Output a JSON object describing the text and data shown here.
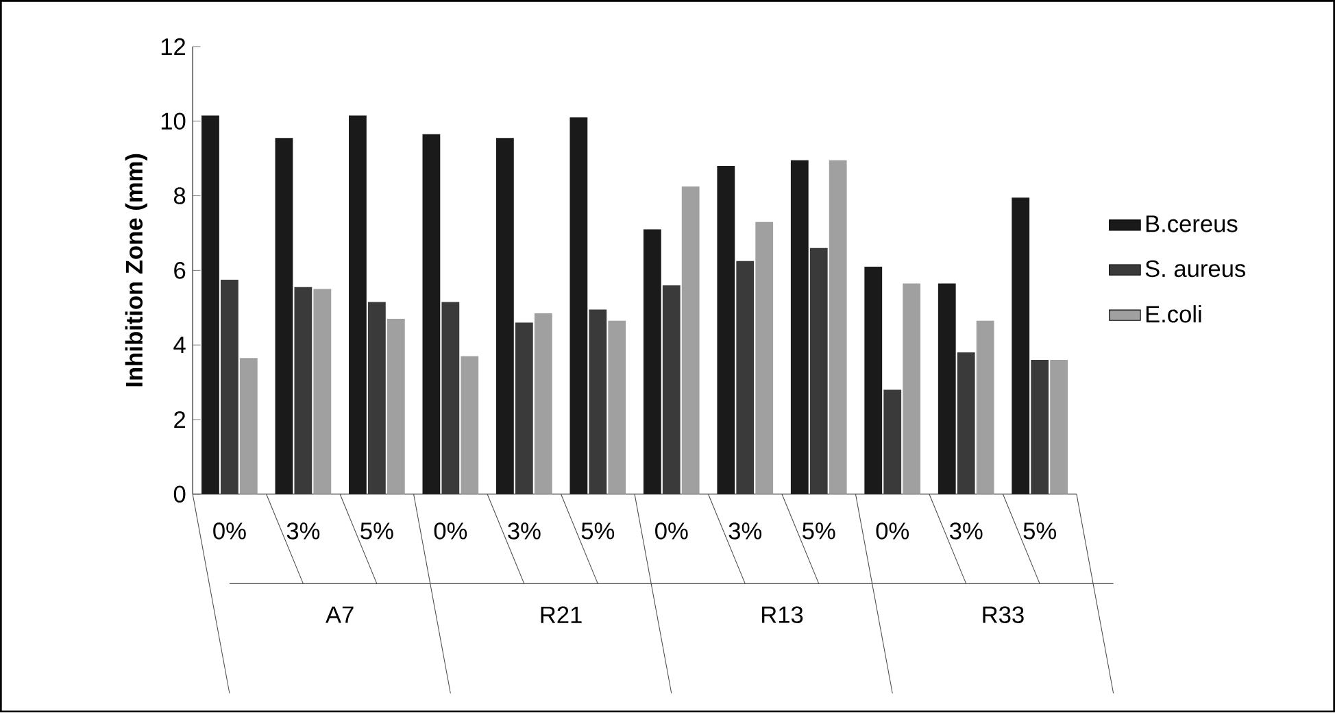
{
  "chart_data": {
    "type": "bar",
    "ylabel": "Inhibition Zone (mm)",
    "categories": [
      "0%",
      "3%",
      "5%",
      "0%",
      "3%",
      "5%",
      "0%",
      "3%",
      "5%",
      "0%",
      "3%",
      "5%"
    ],
    "annotations": [
      "A7",
      "R21",
      "R13",
      "R33"
    ],
    "series": [
      {
        "name": "B.cereus",
        "color": "#1a1a1a",
        "values": [
          10.15,
          9.55,
          10.15,
          9.65,
          9.55,
          10.1,
          7.1,
          8.8,
          8.95,
          6.1,
          5.65,
          7.95
        ]
      },
      {
        "name": "S. aureus",
        "color": "#3a3a3a",
        "values": [
          5.75,
          5.55,
          5.15,
          5.15,
          4.6,
          4.95,
          5.6,
          6.25,
          6.6,
          2.8,
          3.8,
          3.6
        ]
      },
      {
        "name": "E.coli",
        "color": "#a0a0a0",
        "values": [
          3.65,
          5.5,
          4.7,
          3.7,
          4.85,
          4.65,
          8.25,
          7.3,
          8.95,
          5.65,
          4.65,
          3.6
        ]
      }
    ],
    "ylim": [
      0,
      12
    ],
    "yticks": [
      0,
      2,
      4,
      6,
      8,
      10,
      12
    ],
    "legend": "right"
  }
}
